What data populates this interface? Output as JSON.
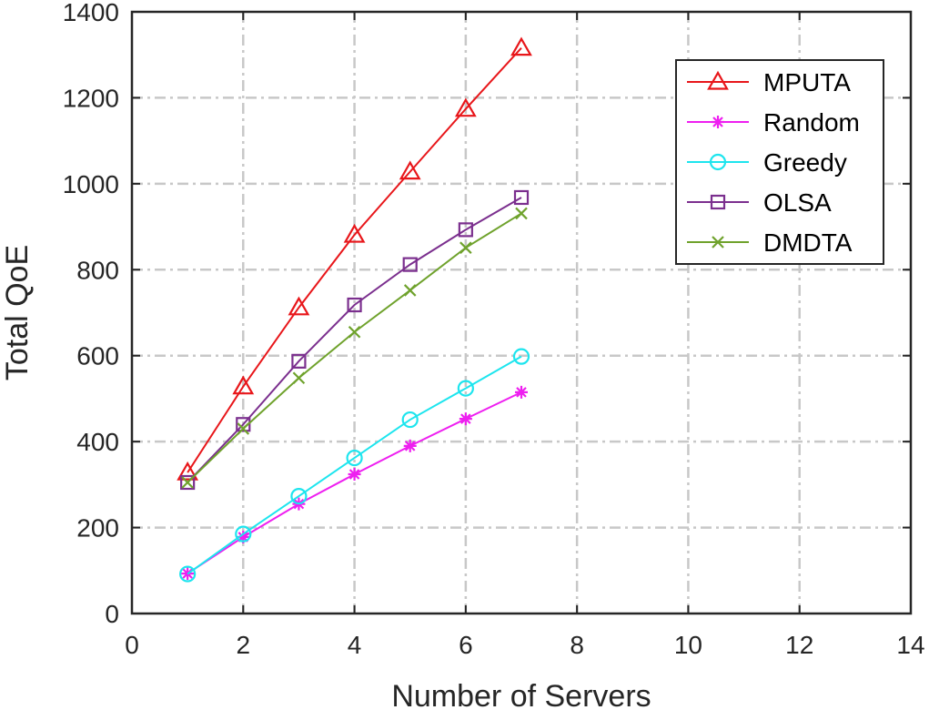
{
  "chart_data": {
    "type": "line",
    "xlabel": "Number of Servers",
    "ylabel": "Total QoE",
    "xlim": [
      0,
      14
    ],
    "ylim": [
      0,
      1400
    ],
    "xticks": [
      0,
      2,
      4,
      6,
      8,
      10,
      12,
      14
    ],
    "yticks": [
      0,
      200,
      400,
      600,
      800,
      1000,
      1200,
      1400
    ],
    "grid": true,
    "legend_position": "top-right",
    "x": [
      1,
      2,
      3,
      4,
      5,
      6,
      7
    ],
    "series": [
      {
        "name": "MPUTA",
        "color": "#e8161a",
        "marker": "triangle",
        "values": [
          328,
          528,
          712,
          881,
          1028,
          1174,
          1316
        ]
      },
      {
        "name": "Random",
        "color": "#ee1ff0",
        "marker": "asterisk",
        "values": [
          93,
          178,
          255,
          324,
          390,
          453,
          515
        ]
      },
      {
        "name": "Greedy",
        "color": "#1de5ee",
        "marker": "circle",
        "values": [
          92,
          185,
          273,
          362,
          451,
          524,
          598
        ]
      },
      {
        "name": "OLSA",
        "color": "#7b2f8e",
        "marker": "square",
        "values": [
          305,
          440,
          587,
          718,
          812,
          893,
          968
        ]
      },
      {
        "name": "DMDTA",
        "color": "#6fa22c",
        "marker": "x",
        "values": [
          305,
          430,
          548,
          655,
          752,
          851,
          931
        ]
      }
    ]
  }
}
